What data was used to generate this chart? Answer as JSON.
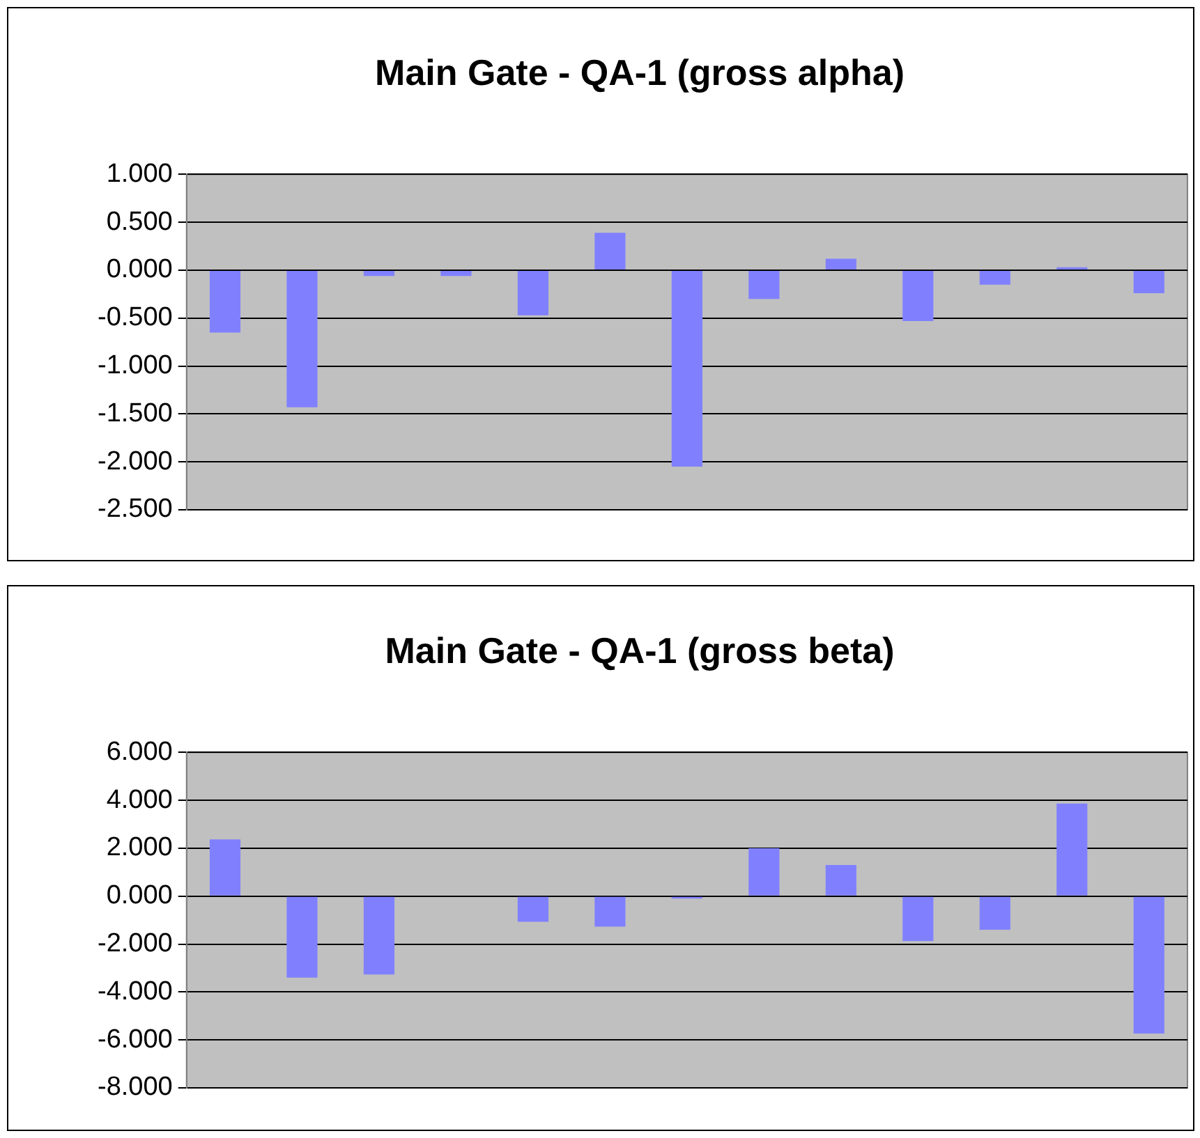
{
  "chart_data": [
    {
      "type": "bar",
      "title": "Main Gate - QA-1 (gross alpha)",
      "categories": [
        null,
        null,
        null,
        null,
        null,
        null,
        null,
        null,
        null,
        null,
        null,
        null,
        null
      ],
      "series": [
        {
          "color": "#8080ff",
          "values": [
            -0.65,
            -1.43,
            -0.06,
            -0.06,
            -0.47,
            0.39,
            -2.05,
            -0.3,
            0.12,
            -0.53,
            -0.15,
            0.03,
            -0.24
          ]
        }
      ],
      "ylim": [
        -2.5,
        1
      ],
      "yticks": [
        {
          "value": 1,
          "label": "1.000"
        },
        {
          "value": 0.5,
          "label": "0.500"
        },
        {
          "value": 0,
          "label": "0.000"
        },
        {
          "value": -0.5,
          "label": "-0.500"
        },
        {
          "value": -1,
          "label": "-1.000"
        },
        {
          "value": -1.5,
          "label": "-1.500"
        },
        {
          "value": -2,
          "label": "-2.000"
        },
        {
          "value": -2.5,
          "label": "-2.500"
        }
      ],
      "grid": "y",
      "legend": false,
      "tick_labels": "y"
    },
    {
      "type": "bar",
      "title": "Main Gate - QA-1 (gross beta)",
      "categories": [
        null,
        null,
        null,
        null,
        null,
        null,
        null,
        null,
        null,
        null,
        null,
        null,
        null
      ],
      "series": [
        {
          "color": "#8080ff",
          "values": [
            2.37,
            -3.4,
            -3.27,
            null,
            -1.07,
            -1.27,
            -0.1,
            2.0,
            1.3,
            -1.87,
            -1.4,
            3.87,
            -5.73
          ]
        }
      ],
      "ylim": [
        -8,
        6
      ],
      "yticks": [
        {
          "value": 6,
          "label": "6.000"
        },
        {
          "value": 4,
          "label": "4.000"
        },
        {
          "value": 2,
          "label": "2.000"
        },
        {
          "value": 0,
          "label": "0.000"
        },
        {
          "value": -2,
          "label": "-2.000"
        },
        {
          "value": -4,
          "label": "-4.000"
        },
        {
          "value": -6,
          "label": "-6.000"
        },
        {
          "value": -8,
          "label": "-8.000"
        }
      ],
      "grid": "y",
      "legend": false,
      "tick_labels": "y"
    }
  ]
}
